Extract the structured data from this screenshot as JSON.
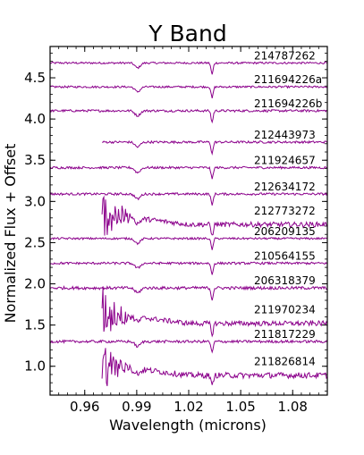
{
  "chart_data": {
    "type": "line",
    "title": "Y Band",
    "xlabel": "Wavelength (microns)",
    "ylabel": "Normalized Flux + Offset",
    "xlim": [
      0.94,
      1.1
    ],
    "ylim": [
      0.65,
      4.88
    ],
    "xticks": [
      0.96,
      0.99,
      1.02,
      1.05,
      1.08
    ],
    "xtick_labels": [
      "0.96",
      "0.99",
      "1.02",
      "1.05",
      "1.08"
    ],
    "yticks": [
      1.0,
      1.5,
      2.0,
      2.5,
      3.0,
      3.5,
      4.0,
      4.5
    ],
    "ytick_labels": [
      "1.0",
      "1.5",
      "2.0",
      "2.5",
      "3.0",
      "3.5",
      "4.0",
      "4.5"
    ],
    "grid": false,
    "line_color": "#8b008b",
    "series": [
      {
        "name": "214787262",
        "offset": 4.68,
        "xstart": 0.94,
        "noise": 0.012,
        "strong": false
      },
      {
        "name": "211694226a",
        "offset": 4.39,
        "xstart": 0.94,
        "noise": 0.012,
        "strong": false
      },
      {
        "name": "211694226b",
        "offset": 4.1,
        "xstart": 0.94,
        "noise": 0.014,
        "strong": false
      },
      {
        "name": "212443973",
        "offset": 3.72,
        "xstart": 0.97,
        "noise": 0.014,
        "strong": false
      },
      {
        "name": "211924657",
        "offset": 3.41,
        "xstart": 0.94,
        "noise": 0.014,
        "strong": false
      },
      {
        "name": "212634172",
        "offset": 3.09,
        "xstart": 0.94,
        "noise": 0.014,
        "strong": false
      },
      {
        "name": "212773272",
        "offset": 2.8,
        "xstart": 0.97,
        "noise": 0.03,
        "strong": true
      },
      {
        "name": "206209135",
        "offset": 2.55,
        "xstart": 0.94,
        "noise": 0.012,
        "strong": false
      },
      {
        "name": "210564155",
        "offset": 2.25,
        "xstart": 0.94,
        "noise": 0.014,
        "strong": false
      },
      {
        "name": "206318379",
        "offset": 1.95,
        "xstart": 0.94,
        "noise": 0.018,
        "strong": false
      },
      {
        "name": "211970234",
        "offset": 1.6,
        "xstart": 0.97,
        "noise": 0.03,
        "strong": true
      },
      {
        "name": "211817229",
        "offset": 1.3,
        "xstart": 0.94,
        "noise": 0.016,
        "strong": false
      },
      {
        "name": "211826814",
        "offset": 0.97,
        "xstart": 0.97,
        "noise": 0.035,
        "strong": true
      }
    ]
  }
}
